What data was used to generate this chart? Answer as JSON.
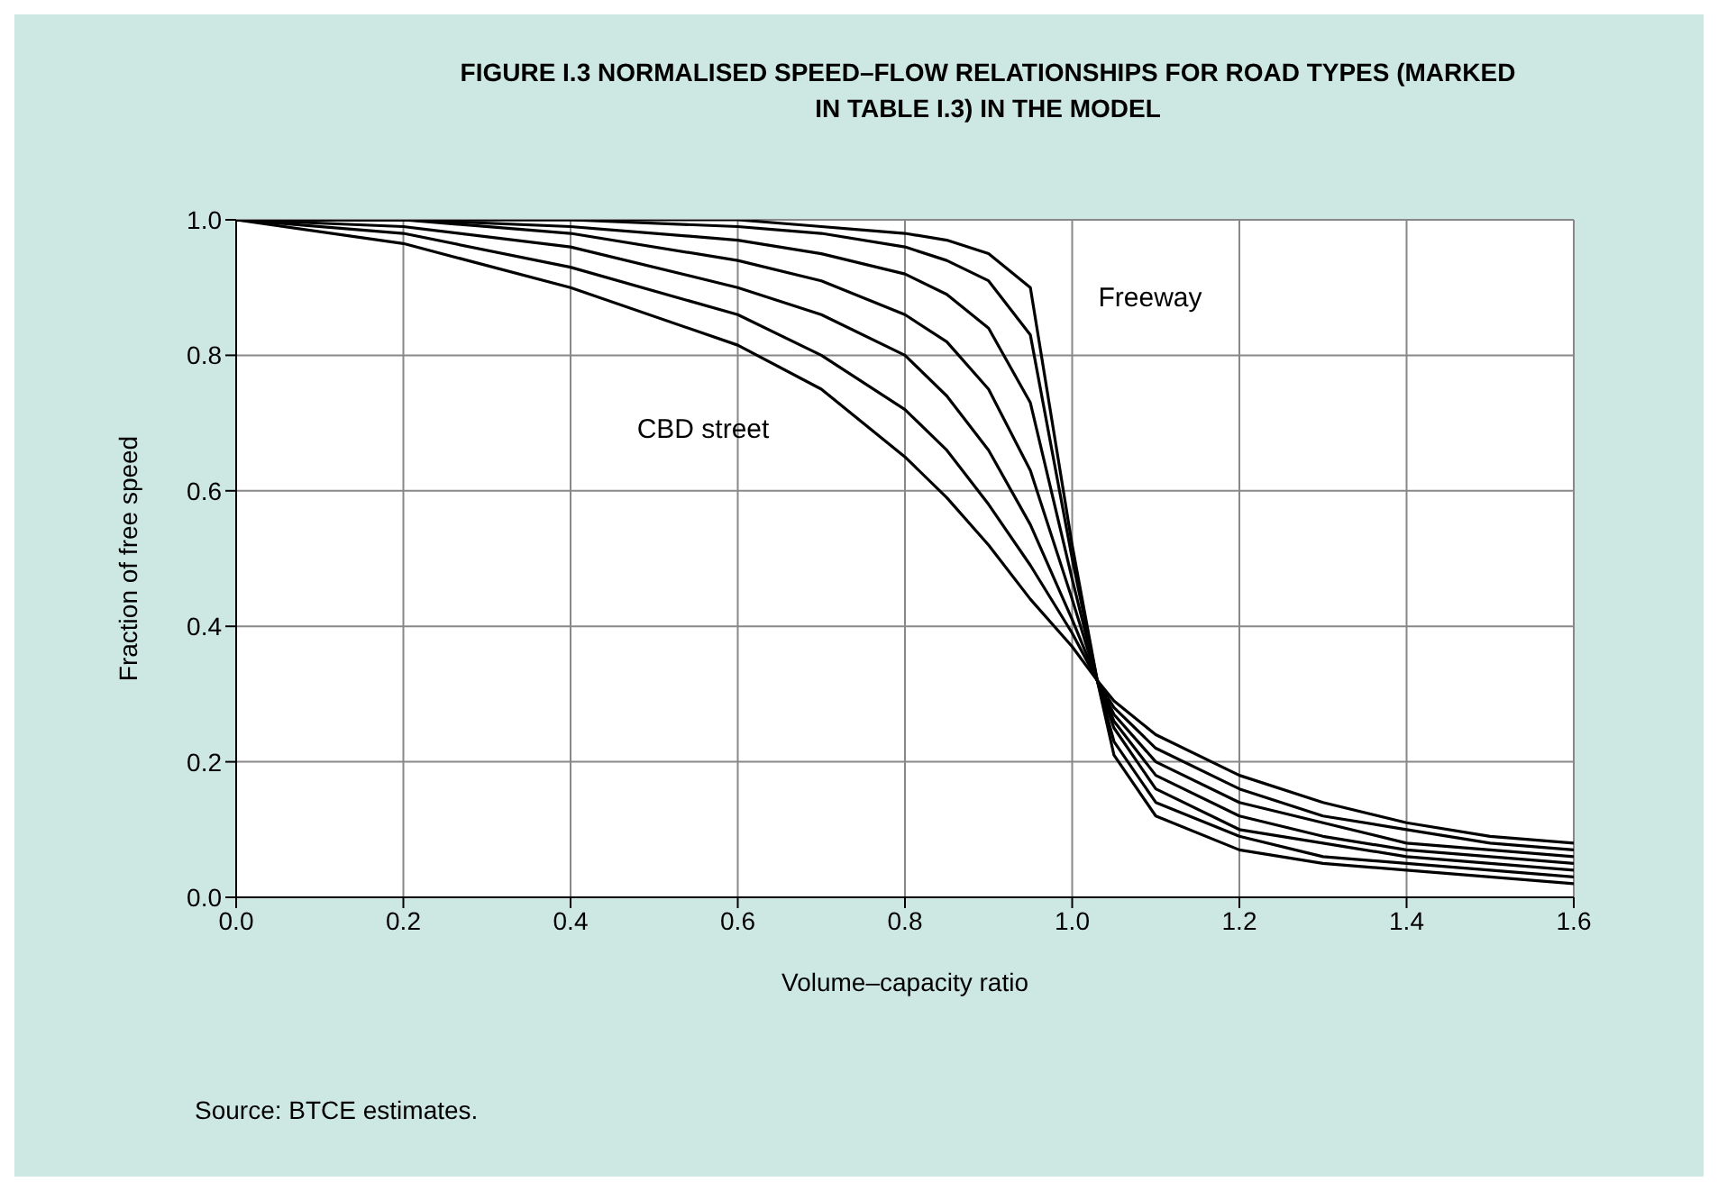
{
  "chart_data": {
    "type": "line",
    "title": "FIGURE I.3 NORMALISED SPEED–FLOW RELATIONSHIPS FOR ROAD TYPES (MARKED IN TABLE I.3) IN THE MODEL",
    "xlabel": "Volume–capacity ratio",
    "ylabel": "Fraction of free speed",
    "x": [
      0,
      0.2,
      0.4,
      0.6,
      0.7,
      0.8,
      0.85,
      0.9,
      0.95,
      1.0,
      1.03,
      1.05,
      1.1,
      1.2,
      1.3,
      1.4,
      1.5,
      1.6
    ],
    "series": [
      {
        "color": "#000000",
        "values": [
          1.0,
          0.965,
          0.9,
          0.815,
          0.75,
          0.65,
          0.59,
          0.52,
          0.44,
          0.37,
          0.32,
          0.29,
          0.24,
          0.18,
          0.14,
          0.11,
          0.09,
          0.08
        ]
      },
      {
        "color": "#000000",
        "values": [
          1.0,
          0.98,
          0.93,
          0.86,
          0.8,
          0.72,
          0.66,
          0.58,
          0.49,
          0.39,
          0.32,
          0.28,
          0.22,
          0.16,
          0.12,
          0.1,
          0.08,
          0.07
        ]
      },
      {
        "color": "#000000",
        "values": [
          1.0,
          0.99,
          0.96,
          0.9,
          0.86,
          0.8,
          0.74,
          0.66,
          0.55,
          0.41,
          0.32,
          0.27,
          0.2,
          0.14,
          0.11,
          0.08,
          0.07,
          0.06
        ]
      },
      {
        "color": "#000000",
        "values": [
          1.0,
          1.0,
          0.98,
          0.94,
          0.91,
          0.86,
          0.82,
          0.75,
          0.63,
          0.44,
          0.32,
          0.26,
          0.18,
          0.12,
          0.09,
          0.07,
          0.06,
          0.05
        ]
      },
      {
        "color": "#000000",
        "values": [
          1.0,
          1.0,
          0.99,
          0.97,
          0.95,
          0.92,
          0.89,
          0.84,
          0.73,
          0.47,
          0.32,
          0.25,
          0.16,
          0.1,
          0.08,
          0.06,
          0.05,
          0.04
        ]
      },
      {
        "color": "#000000",
        "values": [
          1.0,
          1.0,
          1.0,
          0.99,
          0.98,
          0.96,
          0.94,
          0.91,
          0.83,
          0.5,
          0.32,
          0.23,
          0.14,
          0.09,
          0.06,
          0.05,
          0.04,
          0.03
        ]
      },
      {
        "color": "#000000",
        "values": [
          1.0,
          1.0,
          1.0,
          1.0,
          0.99,
          0.98,
          0.97,
          0.95,
          0.9,
          0.52,
          0.32,
          0.21,
          0.12,
          0.07,
          0.05,
          0.04,
          0.03,
          0.02
        ]
      }
    ],
    "xlim": [
      0,
      1.6
    ],
    "xticks": [
      {
        "value": 0,
        "label": "0.0"
      },
      0.2,
      0.4,
      0.6,
      0.8,
      {
        "value": 1,
        "label": "1.0"
      },
      1.2,
      1.4,
      1.6
    ],
    "ylim": [
      0,
      1
    ],
    "yticks": [
      {
        "value": 0,
        "label": "0.0"
      },
      0.2,
      0.4,
      0.6,
      0.8,
      {
        "value": 1,
        "label": "1.0"
      }
    ],
    "grid": true,
    "marker": "none",
    "line_style": "solid",
    "annotations": [
      "Freeway",
      "CBD street",
      "Source: BTCE estimates."
    ]
  }
}
